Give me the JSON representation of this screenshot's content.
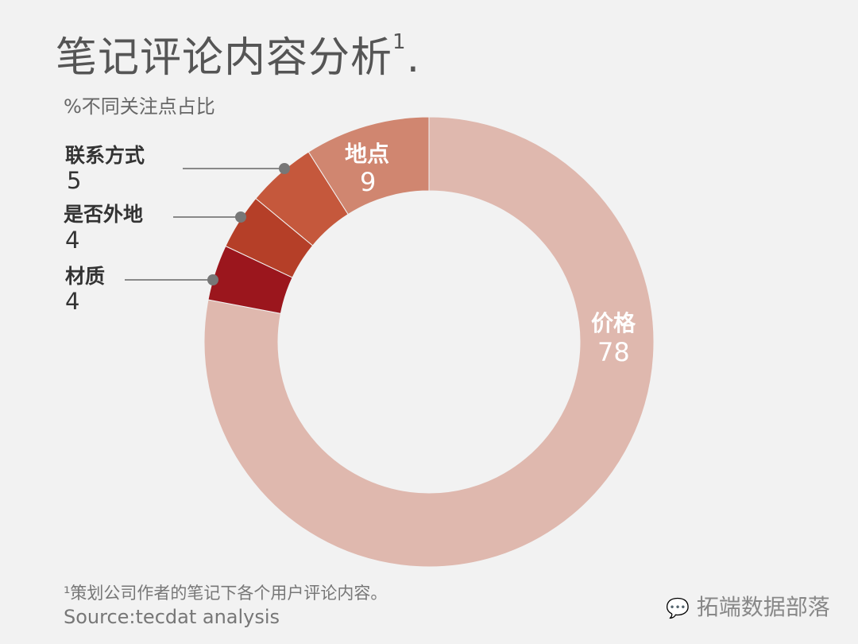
{
  "title": "笔记评论内容分析",
  "title_footnote_mark": "1",
  "title_suffix": ".",
  "subtitle": "%不同关注点占比",
  "chart_data": {
    "type": "pie",
    "donut": true,
    "start": "top",
    "direction": "clockwise",
    "slices": [
      {
        "label": "价格",
        "value": 78,
        "color": "#dfb8ae"
      },
      {
        "label": "材质",
        "value": 4,
        "color": "#9b161d"
      },
      {
        "label": "是否外地",
        "value": 4,
        "color": "#b53f28"
      },
      {
        "label": "联系方式",
        "value": 5,
        "color": "#c5583c"
      },
      {
        "label": "地点",
        "value": 9,
        "color": "#d08670"
      }
    ],
    "leader_color": "#777777"
  },
  "footnote": "¹策划公司作者的笔记下各个用户评论内容。",
  "source": "Source:tecdat analysis",
  "watermark": "拓端数据部落",
  "watermark_icon": "wechat-icon"
}
